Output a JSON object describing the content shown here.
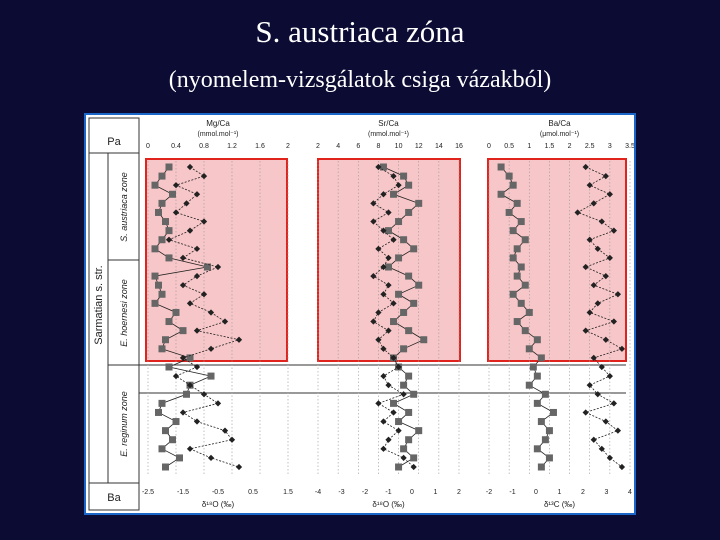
{
  "title": "S. austriaca zóna",
  "subtitle": "(nyomelem-vizsgálatok csiga vázakból)",
  "colors": {
    "background": "#0b0b33",
    "highlight_fill": "#f7c6c8",
    "highlight_border": "#e0231d",
    "frame": "#1a66c9"
  },
  "stratigraphy": {
    "top_unit": "Pa",
    "bottom_unit": "Ba",
    "stage": "Sarmatian s. str.",
    "zones": [
      "S. austriaca zone",
      "E. hoernesi zone",
      "E. reginum zone"
    ]
  },
  "chart_data": [
    {
      "type": "scatter",
      "top_label": "Mg/Ca",
      "top_unit": "(mmol.mol⁻¹)",
      "top_ticks": [
        "0",
        "0.4",
        "0.8",
        "1.2",
        "1.6",
        "2"
      ],
      "bottom_label": "δ¹⁸O (‰)",
      "bottom_ticks": [
        "-2.5",
        "-1.5",
        "-0.5",
        "0.5",
        "1.5"
      ],
      "y_levels": [
        1,
        2,
        3,
        4,
        5,
        6,
        7,
        8,
        9,
        10,
        11,
        12,
        13,
        14,
        15,
        16,
        17,
        18,
        19,
        20,
        21,
        22,
        23,
        24,
        25,
        26,
        27,
        28,
        29,
        30,
        31,
        32,
        33,
        34
      ],
      "series": [
        {
          "marker": "square",
          "values": [
            0.3,
            0.2,
            0.1,
            0.35,
            0.2,
            0.15,
            0.25,
            0.3,
            0.2,
            0.1,
            0.3,
            0.85,
            0.1,
            0.15,
            0.2,
            0.1,
            0.4,
            0.3,
            0.5,
            0.25,
            0.2,
            0.6,
            0.3,
            0.9,
            0.6,
            0.55,
            0.2,
            0.15,
            0.4,
            0.25,
            0.35,
            0.2,
            0.45,
            0.25
          ]
        },
        {
          "marker": "diamond",
          "values": [
            0.6,
            0.8,
            0.4,
            0.7,
            0.55,
            0.4,
            0.8,
            0.6,
            0.3,
            0.7,
            0.5,
            1.0,
            0.7,
            0.5,
            0.8,
            0.6,
            0.9,
            1.1,
            0.7,
            1.3,
            0.9,
            0.5,
            0.7,
            0.4,
            0.6,
            0.8,
            1.0,
            0.5,
            0.7,
            1.1,
            1.2,
            0.6,
            0.9,
            1.3
          ]
        }
      ]
    },
    {
      "type": "scatter",
      "top_label": "Sr/Ca",
      "top_unit": "(mmol.mol⁻¹)",
      "top_ticks": [
        "2",
        "4",
        "6",
        "8",
        "10",
        "12",
        "14",
        "16"
      ],
      "bottom_label": "δ¹⁸O (‰)",
      "bottom_ticks": [
        "-4",
        "-3",
        "-2",
        "-1",
        "0",
        "1",
        "2"
      ],
      "y_levels": [
        1,
        2,
        3,
        4,
        5,
        6,
        7,
        8,
        9,
        10,
        11,
        12,
        13,
        14,
        15,
        16,
        17,
        18,
        19,
        20,
        21,
        22,
        23,
        24,
        25,
        26,
        27,
        28,
        29,
        30,
        31,
        32,
        33,
        34
      ],
      "series": [
        {
          "marker": "square",
          "values": [
            8.5,
            10.5,
            11.0,
            9.5,
            12.0,
            11.0,
            10.0,
            9.0,
            10.5,
            11.5,
            10.0,
            9.0,
            11.0,
            12.0,
            10.0,
            11.5,
            10.5,
            9.5,
            11.0,
            12.5,
            10.5,
            9.5,
            10.0,
            11.0,
            10.5,
            11.5,
            9.5,
            11.0,
            10.0,
            12.0,
            11.0,
            10.5,
            11.5,
            10.0
          ]
        },
        {
          "marker": "diamond",
          "values": [
            8.0,
            9.5,
            10.0,
            8.5,
            7.5,
            9.0,
            7.5,
            8.5,
            9.5,
            8.0,
            9.0,
            8.5,
            7.5,
            9.0,
            8.5,
            9.5,
            8.0,
            7.5,
            9.0,
            8.0,
            8.5,
            9.5,
            10.0,
            8.5,
            9.0,
            10.5,
            8.0,
            9.5,
            8.5,
            10.0,
            9.0,
            8.5,
            10.5,
            11.5
          ]
        }
      ]
    },
    {
      "type": "scatter",
      "top_label": "Ba/Ca",
      "top_unit": "(μmol.mol⁻¹)",
      "top_ticks": [
        "0",
        "0.5",
        "1",
        "1.5",
        "2",
        "2.5",
        "3",
        "3.5"
      ],
      "bottom_label": "δ¹³C (‰)",
      "bottom_ticks": [
        "-2",
        "-1",
        "0",
        "1",
        "2",
        "3",
        "4"
      ],
      "y_levels": [
        1,
        2,
        3,
        4,
        5,
        6,
        7,
        8,
        9,
        10,
        11,
        12,
        13,
        14,
        15,
        16,
        17,
        18,
        19,
        20,
        21,
        22,
        23,
        24,
        25,
        26,
        27,
        28,
        29,
        30,
        31,
        32,
        33,
        34
      ],
      "series": [
        {
          "marker": "square",
          "values": [
            0.3,
            0.5,
            0.6,
            0.3,
            0.7,
            0.5,
            0.8,
            0.6,
            0.9,
            0.7,
            0.6,
            0.8,
            0.7,
            0.9,
            0.6,
            0.8,
            1.0,
            0.7,
            0.9,
            1.2,
            1.0,
            1.3,
            1.1,
            1.2,
            1.0,
            1.4,
            1.2,
            1.6,
            1.3,
            1.5,
            1.4,
            1.2,
            1.5,
            1.3
          ]
        },
        {
          "marker": "diamond",
          "values": [
            2.4,
            2.9,
            2.5,
            3.0,
            2.6,
            2.2,
            2.8,
            3.1,
            2.5,
            2.7,
            3.0,
            2.4,
            2.9,
            2.6,
            3.2,
            2.7,
            2.5,
            3.1,
            2.4,
            2.9,
            3.3,
            2.6,
            2.8,
            3.0,
            2.5,
            2.7,
            3.1,
            2.4,
            2.9,
            3.2,
            2.6,
            2.8,
            3.0,
            3.3
          ]
        }
      ]
    }
  ]
}
